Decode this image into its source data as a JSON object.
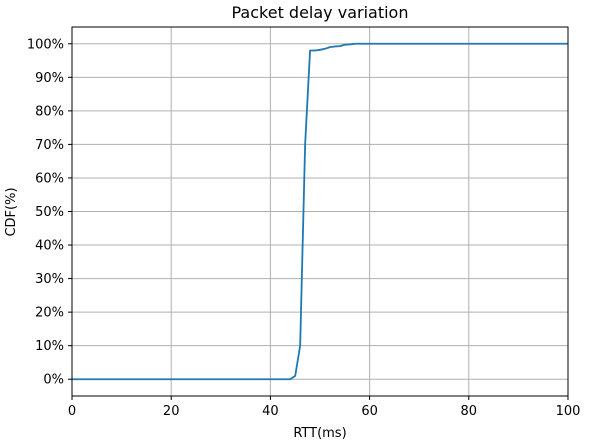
{
  "chart_data": {
    "type": "line",
    "title": "Packet delay variation",
    "xlabel": "RTT(ms)",
    "ylabel": "CDF(%)",
    "xlim": [
      0,
      100
    ],
    "ylim": [
      -0.05,
      1.05
    ],
    "grid": true,
    "x_ticks": [
      0,
      20,
      40,
      60,
      80,
      100
    ],
    "x_tick_labels": [
      "0",
      "20",
      "40",
      "60",
      "80",
      "100"
    ],
    "y_ticks": [
      0,
      0.1,
      0.2,
      0.3,
      0.4,
      0.5,
      0.6,
      0.7,
      0.8,
      0.9,
      1.0
    ],
    "y_tick_labels": [
      "0%",
      "10%",
      "20%",
      "30%",
      "40%",
      "50%",
      "60%",
      "70%",
      "80%",
      "90%",
      "100%"
    ],
    "series": [
      {
        "color": "#1f77b4",
        "x": [
          0,
          44,
          45,
          46,
          47,
          48,
          49,
          50,
          51,
          52,
          53,
          54,
          55,
          56,
          57,
          60,
          70,
          80,
          90,
          100
        ],
        "y": [
          0,
          0,
          0.01,
          0.1,
          0.7,
          0.98,
          0.98,
          0.982,
          0.985,
          0.99,
          0.992,
          0.993,
          0.997,
          0.998,
          1.0,
          1.0,
          1.0,
          1.0,
          1.0,
          1.0
        ]
      }
    ]
  }
}
